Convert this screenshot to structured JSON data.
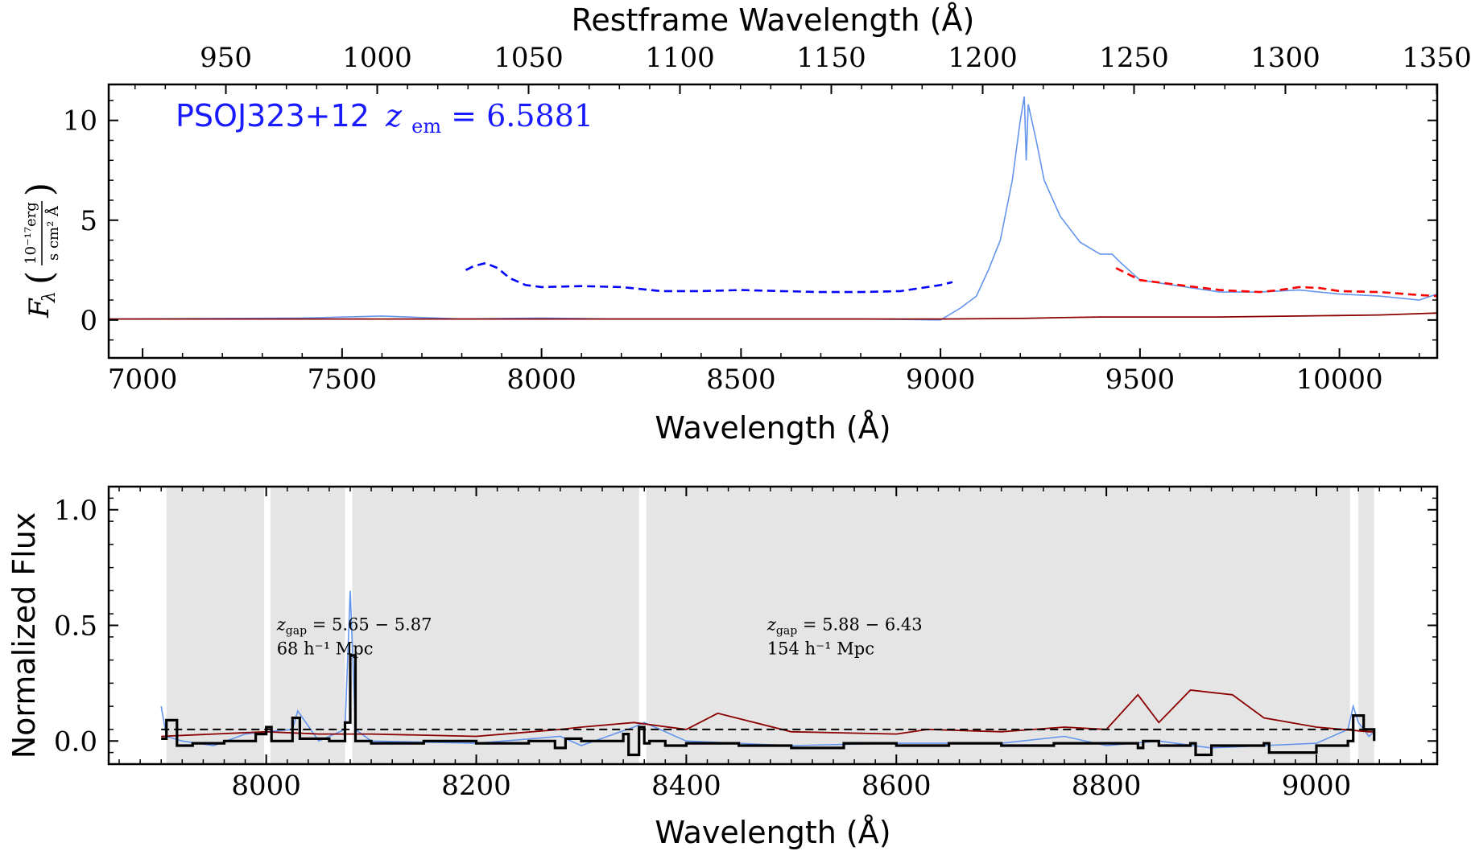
{
  "chart_data": [
    {
      "type": "line",
      "title": "",
      "label": {
        "object": "PSOJ323+12",
        "z_symbol": "z",
        "z_sub": "em",
        "z_eq": " = 6.5881"
      },
      "xlabel": "Wavelength (Å)",
      "top_xlabel": "Restframe Wavelength (Å)",
      "ylabel": {
        "symbol": "F",
        "sub": "λ",
        "unit_num": "10⁻¹⁷erg",
        "unit_den": "s cm² Å"
      },
      "xlim": [
        6915,
        10245
      ],
      "ylim": [
        -1.9,
        11.8
      ],
      "xticks": [
        7000,
        7500,
        8000,
        8500,
        9000,
        9500,
        10000
      ],
      "xtick_labels": [
        "7000",
        "7500",
        "8000",
        "8500",
        "9000",
        "9500",
        "10000"
      ],
      "yticks": [
        0,
        5,
        10
      ],
      "ytick_labels": [
        "0",
        "5",
        "10"
      ],
      "top_xticks": [
        950,
        1000,
        1050,
        1100,
        1150,
        1200,
        1250,
        1300,
        1350
      ],
      "top_xtick_labels": [
        "950",
        "1000",
        "1050",
        "1100",
        "1150",
        "1200",
        "1250",
        "1300",
        "1350"
      ],
      "redshift": 6.5881,
      "colors": {
        "flux": "#6495ed",
        "error": "#8b0000",
        "model": "#0000ff",
        "continuum": "#ff0000"
      },
      "series": [
        {
          "key": "flux",
          "style": "solid",
          "x": [
            6915,
            7400,
            7600,
            7800,
            8000,
            8200,
            8400,
            8600,
            8800,
            9000,
            9050,
            9090,
            9120,
            9150,
            9180,
            9200,
            9210,
            9215,
            9220,
            9240,
            9260,
            9300,
            9350,
            9400,
            9430,
            9450,
            9500,
            9600,
            9700,
            9800,
            9900,
            10000,
            10100,
            10200,
            10245
          ],
          "y": [
            0.05,
            0.1,
            0.2,
            0.05,
            0.1,
            0.05,
            0.05,
            0.05,
            0.05,
            0.0,
            0.6,
            1.2,
            2.5,
            4.0,
            7.0,
            10.0,
            11.2,
            8.0,
            10.8,
            9.0,
            7.0,
            5.2,
            3.9,
            3.3,
            3.3,
            2.9,
            2.0,
            1.7,
            1.4,
            1.4,
            1.5,
            1.3,
            1.2,
            1.0,
            1.3
          ]
        },
        {
          "key": "error",
          "style": "solid",
          "x": [
            6915,
            7500,
            8000,
            8500,
            9000,
            9200,
            9300,
            9400,
            9500,
            9700,
            9900,
            10100,
            10245
          ],
          "y": [
            0.05,
            0.05,
            0.05,
            0.05,
            0.05,
            0.08,
            0.12,
            0.15,
            0.15,
            0.15,
            0.2,
            0.25,
            0.35
          ]
        },
        {
          "key": "model",
          "style": "dashed",
          "x": [
            7810,
            7830,
            7860,
            7890,
            7920,
            7960,
            8000,
            8100,
            8200,
            8300,
            8400,
            8500,
            8600,
            8700,
            8800,
            8900,
            9000,
            9030
          ],
          "y": [
            2.5,
            2.7,
            2.85,
            2.6,
            2.1,
            1.75,
            1.65,
            1.7,
            1.65,
            1.45,
            1.45,
            1.5,
            1.45,
            1.4,
            1.4,
            1.45,
            1.75,
            1.9
          ]
        },
        {
          "key": "continuum",
          "style": "dashed",
          "x": [
            9440,
            9500,
            9600,
            9700,
            9800,
            9850,
            9900,
            9950,
            10000,
            10100,
            10200,
            10245
          ],
          "y": [
            2.6,
            2.0,
            1.75,
            1.5,
            1.4,
            1.5,
            1.65,
            1.6,
            1.45,
            1.4,
            1.25,
            1.2
          ]
        }
      ]
    },
    {
      "type": "line",
      "title": "",
      "xlabel": "Wavelength (Å)",
      "ylabel": "Normalized Flux",
      "xlim": [
        7850,
        9115
      ],
      "ylim": [
        -0.1,
        1.1
      ],
      "xticks": [
        8000,
        8200,
        8400,
        8600,
        8800,
        9000
      ],
      "xtick_labels": [
        "8000",
        "8200",
        "8400",
        "8600",
        "8800",
        "9000"
      ],
      "yticks": [
        0.0,
        0.5,
        1.0
      ],
      "ytick_labels": [
        "0.0",
        "0.5",
        "1.0"
      ],
      "threshold": 0.05,
      "gap_regions": [
        [
          7905,
          7998
        ],
        [
          8004,
          8075
        ],
        [
          8082,
          8355
        ],
        [
          8362,
          9032
        ],
        [
          9040,
          9055
        ]
      ],
      "annotations": [
        {
          "x": 8010,
          "y": 0.5,
          "line1_sym": "z",
          "line1_sub": "gap",
          "line1_rest": " = 5.65 − 5.87",
          "line2": "68 h⁻¹ Mpc"
        },
        {
          "x": 8477,
          "y": 0.5,
          "line1_sym": "z",
          "line1_sub": "gap",
          "line1_rest": " = 5.88 − 6.43",
          "line2": "154 h⁻¹ Mpc"
        }
      ],
      "colors": {
        "flux": "#6495ed",
        "error": "#8b0000",
        "binned": "#000000",
        "threshold": "#000000"
      },
      "series": [
        {
          "key": "flux",
          "x": [
            7900,
            7905,
            7920,
            7950,
            7980,
            8000,
            8025,
            8030,
            8050,
            8075,
            8080,
            8085,
            8100,
            8200,
            8280,
            8300,
            8350,
            8360,
            8400,
            8500,
            8600,
            8700,
            8760,
            8800,
            8850,
            8900,
            8950,
            9000,
            9030,
            9035,
            9040,
            9050,
            9055
          ],
          "y": [
            0.15,
            0.02,
            0.0,
            -0.02,
            0.03,
            0.04,
            0.05,
            0.13,
            0.0,
            0.05,
            0.65,
            0.05,
            0.0,
            -0.01,
            0.02,
            -0.02,
            0.06,
            0.08,
            0.0,
            -0.02,
            -0.01,
            -0.01,
            0.02,
            -0.02,
            0.0,
            -0.03,
            -0.02,
            -0.01,
            0.05,
            0.15,
            0.08,
            0.02,
            0.04
          ]
        },
        {
          "key": "error",
          "x": [
            7900,
            7950,
            8000,
            8050,
            8100,
            8200,
            8280,
            8300,
            8350,
            8400,
            8430,
            8500,
            8600,
            8630,
            8700,
            8760,
            8800,
            8830,
            8850,
            8880,
            8920,
            8950,
            9000,
            9050,
            9055
          ],
          "y": [
            0.02,
            0.03,
            0.04,
            0.03,
            0.03,
            0.02,
            0.05,
            0.06,
            0.08,
            0.05,
            0.12,
            0.04,
            0.03,
            0.05,
            0.04,
            0.06,
            0.05,
            0.2,
            0.08,
            0.22,
            0.2,
            0.1,
            0.06,
            0.04,
            0.04
          ]
        },
        {
          "key": "binned",
          "x": [
            7900,
            7905,
            7915,
            7930,
            7960,
            7990,
            8000,
            8005,
            8025,
            8032,
            8060,
            8075,
            8080,
            8085,
            8100,
            8150,
            8200,
            8250,
            8275,
            8285,
            8300,
            8340,
            8345,
            8355,
            8360,
            8365,
            8380,
            8400,
            8450,
            8500,
            8550,
            8600,
            8650,
            8700,
            8750,
            8800,
            8830,
            8835,
            8850,
            8880,
            8885,
            8900,
            8950,
            8955,
            9000,
            9030,
            9035,
            9045,
            9055
          ],
          "y": [
            0.01,
            0.09,
            -0.02,
            -0.01,
            0.0,
            0.03,
            0.06,
            0.0,
            0.1,
            0.01,
            0.0,
            0.08,
            0.37,
            0.0,
            -0.01,
            0.0,
            -0.01,
            0.0,
            -0.03,
            0.01,
            0.0,
            0.03,
            -0.06,
            0.06,
            -0.01,
            0.0,
            -0.02,
            -0.01,
            -0.02,
            -0.03,
            -0.01,
            -0.02,
            -0.01,
            -0.02,
            -0.01,
            -0.01,
            -0.03,
            0.0,
            -0.02,
            -0.01,
            -0.06,
            -0.02,
            -0.01,
            -0.05,
            -0.02,
            0.0,
            0.11,
            0.05,
            0.0
          ]
        }
      ]
    }
  ]
}
